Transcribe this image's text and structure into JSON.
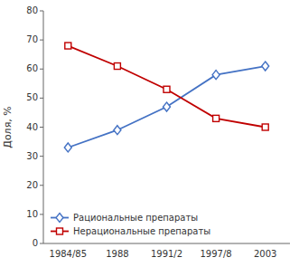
{
  "chart_data": {
    "type": "line",
    "ylabel": "Доля, %",
    "categories": [
      "1984/85",
      "1988",
      "1991/2",
      "1997/8",
      "2003"
    ],
    "series": [
      {
        "name": "Рациональные препараты",
        "color": "#4472c4",
        "marker": "diamond",
        "values": [
          33,
          39,
          47,
          58,
          61
        ]
      },
      {
        "name": "Нерациональные препараты",
        "color": "#c00000",
        "marker": "square",
        "values": [
          68,
          61,
          53,
          43,
          40
        ]
      }
    ],
    "ylim": [
      0,
      80
    ],
    "yticks": [
      0,
      10,
      20,
      30,
      40,
      50,
      60,
      70,
      80
    ],
    "grid": false,
    "legend": "lower left"
  }
}
